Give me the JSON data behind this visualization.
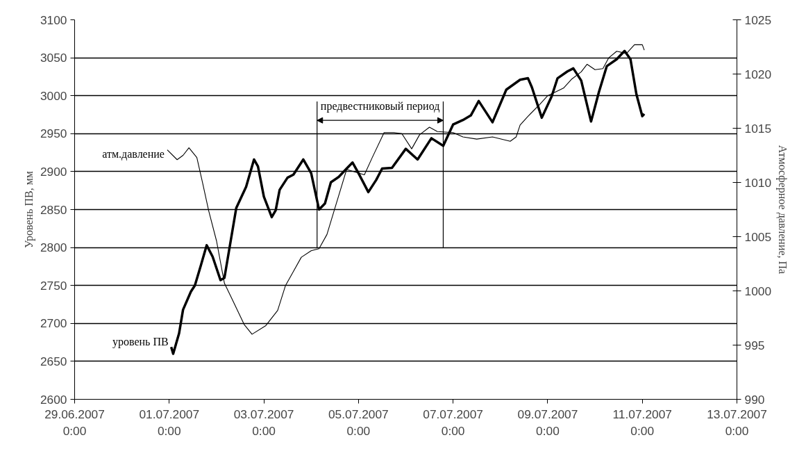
{
  "chart_data": {
    "type": "line",
    "ylabel": "Уровень ПВ, мм",
    "y2label": "Атмосферное давление, Па",
    "xlim": [
      "2007-06-29T00:00",
      "2007-07-13T00:00"
    ],
    "xticks": [
      {
        "value": "2007-06-29T00:00",
        "label": "29.06.2007\n0:00"
      },
      {
        "value": "2007-07-01T00:00",
        "label": "01.07.2007\n0:00"
      },
      {
        "value": "2007-07-03T00:00",
        "label": "03.07.2007\n0:00"
      },
      {
        "value": "2007-07-05T00:00",
        "label": "05.07.2007\n0:00"
      },
      {
        "value": "2007-07-07T00:00",
        "label": "07.07.2007\n0:00"
      },
      {
        "value": "2007-07-09T00:00",
        "label": "09.07.2007\n0:00"
      },
      {
        "value": "2007-07-11T00:00",
        "label": "11.07.2007\n0:00"
      },
      {
        "value": "2007-07-13T00:00",
        "label": "13.07.2007\n0:00"
      }
    ],
    "ylim": [
      2600,
      3100
    ],
    "yticks": [
      2600,
      2650,
      2700,
      2750,
      2800,
      2850,
      2900,
      2950,
      3000,
      3050,
      3100
    ],
    "y2lim": [
      990,
      1025
    ],
    "y2ticks": [
      990,
      995,
      1000,
      1005,
      1010,
      1015,
      1020,
      1025
    ],
    "grid": "y",
    "marker": "none",
    "line_style": "solid",
    "series": [
      {
        "name": "уровень ПВ",
        "color": "#000000",
        "x": [
          "2007-07-01T01:00",
          "2007-07-01T02:00",
          "2007-07-01T05:00",
          "2007-07-01T07:00",
          "2007-07-01T11:00",
          "2007-07-01T13:00",
          "2007-07-01T16:00",
          "2007-07-01T19:00",
          "2007-07-01T22:00",
          "2007-07-02T02:00",
          "2007-07-02T04:00",
          "2007-07-02T07:00",
          "2007-07-02T10:00",
          "2007-07-02T15:00",
          "2007-07-02T19:00",
          "2007-07-02T21:00",
          "2007-07-03T00:00",
          "2007-07-03T04:00",
          "2007-07-03T06:00",
          "2007-07-03T08:00",
          "2007-07-03T12:00",
          "2007-07-03T15:00",
          "2007-07-03T20:00",
          "2007-07-04T00:00",
          "2007-07-04T04:00",
          "2007-07-04T07:00",
          "2007-07-04T10:00",
          "2007-07-04T14:00",
          "2007-07-04T18:00",
          "2007-07-04T21:00",
          "2007-07-05T00:00",
          "2007-07-05T05:00",
          "2007-07-05T09:00",
          "2007-07-05T12:00",
          "2007-07-05T17:00",
          "2007-07-06T00:00",
          "2007-07-06T06:00",
          "2007-07-06T13:00",
          "2007-07-06T19:00",
          "2007-07-07T00:00",
          "2007-07-07T05:00",
          "2007-07-07T09:00",
          "2007-07-07T13:00",
          "2007-07-07T20:00",
          "2007-07-08T03:00",
          "2007-07-08T10:00",
          "2007-07-08T14:00",
          "2007-07-08T16:00",
          "2007-07-08T21:00",
          "2007-07-09T02:00",
          "2007-07-09T05:00",
          "2007-07-09T10:00",
          "2007-07-09T13:00",
          "2007-07-09T17:00",
          "2007-07-09T22:00",
          "2007-07-10T02:00",
          "2007-07-10T06:00",
          "2007-07-10T11:00",
          "2007-07-10T15:00",
          "2007-07-10T18:00",
          "2007-07-10T21:00",
          "2007-07-11T00:00",
          "2007-07-11T01:00"
        ],
        "values": [
          2669,
          2660,
          2687,
          2718,
          2742,
          2750,
          2776,
          2803,
          2788,
          2757,
          2760,
          2806,
          2852,
          2880,
          2916,
          2907,
          2867,
          2840,
          2849,
          2876,
          2892,
          2896,
          2916,
          2898,
          2850,
          2858,
          2886,
          2893,
          2904,
          2912,
          2898,
          2873,
          2889,
          2904,
          2905,
          2930,
          2916,
          2944,
          2934,
          2962,
          2968,
          2974,
          2993,
          2965,
          3008,
          3021,
          3023,
          3011,
          2971,
          2999,
          3023,
          3032,
          3036,
          3020,
          2966,
          3005,
          3039,
          3048,
          3059,
          3048,
          3002,
          2973,
          2976
        ]
      },
      {
        "name": "атм.давление",
        "color": "#000000",
        "axis": "y2",
        "x": [
          "2007-06-30T23:00",
          "2007-07-01T04:00",
          "2007-07-01T07:00",
          "2007-07-01T10:00",
          "2007-07-01T14:00",
          "2007-07-01T17:00",
          "2007-07-01T20:00",
          "2007-07-02T00:00",
          "2007-07-02T04:00",
          "2007-07-02T08:00",
          "2007-07-02T14:00",
          "2007-07-02T18:00",
          "2007-07-03T01:00",
          "2007-07-03T07:00",
          "2007-07-03T11:00",
          "2007-07-03T15:00",
          "2007-07-03T19:00",
          "2007-07-04T00:00",
          "2007-07-04T04:00",
          "2007-07-04T08:00",
          "2007-07-04T12:00",
          "2007-07-04T18:00",
          "2007-07-05T03:00",
          "2007-07-05T07:00",
          "2007-07-05T13:00",
          "2007-07-05T18:00",
          "2007-07-05T22:00",
          "2007-07-06T03:00",
          "2007-07-06T07:00",
          "2007-07-06T12:00",
          "2007-07-06T16:00",
          "2007-07-07T00:00",
          "2007-07-07T05:00",
          "2007-07-07T12:00",
          "2007-07-07T20:00",
          "2007-07-08T05:00",
          "2007-07-08T08:00",
          "2007-07-08T10:00",
          "2007-07-08T14:00",
          "2007-07-08T20:00",
          "2007-07-09T00:00",
          "2007-07-09T08:00",
          "2007-07-09T12:00",
          "2007-07-09T17:00",
          "2007-07-09T20:00",
          "2007-07-10T00:00",
          "2007-07-10T04:00",
          "2007-07-10T07:00",
          "2007-07-10T11:00",
          "2007-07-10T16:00",
          "2007-07-10T20:00",
          "2007-07-11T00:00",
          "2007-07-11T01:00"
        ],
        "values": [
          1013.0,
          1012.1,
          1012.5,
          1013.2,
          1012.3,
          1009.9,
          1007.4,
          1004.6,
          1000.7,
          999.2,
          996.9,
          996.0,
          996.8,
          998.2,
          1000.5,
          1001.8,
          1003.1,
          1003.7,
          1003.9,
          1005.2,
          1007.6,
          1011.2,
          1010.7,
          1012.3,
          1014.6,
          1014.6,
          1014.5,
          1013.1,
          1014.4,
          1015.1,
          1014.7,
          1014.6,
          1014.2,
          1014.0,
          1014.2,
          1013.8,
          1014.2,
          1015.3,
          1016.1,
          1017.2,
          1018.0,
          1018.7,
          1019.5,
          1020.2,
          1020.9,
          1020.4,
          1020.5,
          1021.5,
          1022.1,
          1021.9,
          1022.7,
          1022.7,
          1022.2
        ]
      }
    ],
    "ref_lines": [
      {
        "axis": "x",
        "value": "2007-07-04T03:00",
        "label": null
      },
      {
        "axis": "x",
        "value": "2007-07-06T19:00",
        "label": null
      }
    ],
    "annotations": [
      "предвестниковый период"
    ]
  }
}
